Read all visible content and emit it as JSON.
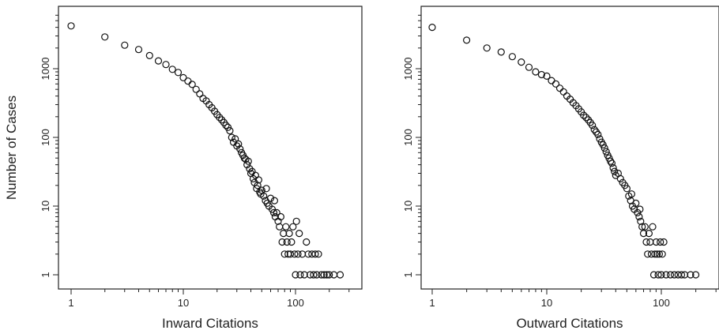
{
  "chart_data": [
    {
      "type": "scatter",
      "xlabel": "Inward Citations",
      "ylabel": "Number of Cases",
      "x_scale": "log",
      "y_scale": "log",
      "xlim": [
        0.8,
        300
      ],
      "ylim": [
        0.8,
        6000
      ],
      "x_ticks": [
        1,
        10,
        100
      ],
      "x_tick_labels": [
        "1",
        "10",
        "100"
      ],
      "y_ticks": [
        1,
        10,
        100,
        1000
      ],
      "y_tick_labels": [
        "1",
        "10",
        "100",
        "1000"
      ],
      "grid": false,
      "series": [
        {
          "points": [
            [
              1,
              4200
            ],
            [
              2,
              2900
            ],
            [
              3,
              2200
            ],
            [
              4,
              1900
            ],
            [
              5,
              1550
            ],
            [
              6,
              1300
            ],
            [
              7,
              1150
            ],
            [
              8,
              980
            ],
            [
              9,
              880
            ],
            [
              10,
              740
            ],
            [
              11,
              660
            ],
            [
              12,
              590
            ],
            [
              13,
              500
            ],
            [
              14,
              430
            ],
            [
              15,
              370
            ],
            [
              16,
              340
            ],
            [
              17,
              300
            ],
            [
              18,
              270
            ],
            [
              19,
              240
            ],
            [
              20,
              215
            ],
            [
              21,
              195
            ],
            [
              22,
              180
            ],
            [
              23,
              165
            ],
            [
              24,
              150
            ],
            [
              25,
              140
            ],
            [
              26,
              125
            ],
            [
              27,
              100
            ],
            [
              28,
              85
            ],
            [
              29,
              95
            ],
            [
              30,
              75
            ],
            [
              31,
              80
            ],
            [
              32,
              68
            ],
            [
              33,
              60
            ],
            [
              34,
              55
            ],
            [
              35,
              50
            ],
            [
              36,
              48
            ],
            [
              37,
              40
            ],
            [
              38,
              45
            ],
            [
              39,
              35
            ],
            [
              40,
              30
            ],
            [
              41,
              32
            ],
            [
              42,
              25
            ],
            [
              43,
              22
            ],
            [
              44,
              28
            ],
            [
              45,
              18
            ],
            [
              46,
              20
            ],
            [
              47,
              24
            ],
            [
              48,
              16
            ],
            [
              49,
              15
            ],
            [
              50,
              17
            ],
            [
              52,
              14
            ],
            [
              54,
              12
            ],
            [
              55,
              18
            ],
            [
              56,
              11
            ],
            [
              58,
              10
            ],
            [
              60,
              13
            ],
            [
              62,
              9
            ],
            [
              64,
              8
            ],
            [
              65,
              12
            ],
            [
              66,
              7
            ],
            [
              68,
              8
            ],
            [
              70,
              6
            ],
            [
              72,
              5
            ],
            [
              74,
              7
            ],
            [
              76,
              3
            ],
            [
              78,
              4
            ],
            [
              80,
              2
            ],
            [
              82,
              5
            ],
            [
              84,
              3
            ],
            [
              86,
              2
            ],
            [
              88,
              4
            ],
            [
              90,
              2
            ],
            [
              92,
              3
            ],
            [
              95,
              5
            ],
            [
              98,
              2
            ],
            [
              100,
              1
            ],
            [
              102,
              6
            ],
            [
              105,
              2
            ],
            [
              108,
              4
            ],
            [
              110,
              1
            ],
            [
              115,
              2
            ],
            [
              120,
              1
            ],
            [
              125,
              3
            ],
            [
              130,
              2
            ],
            [
              135,
              1
            ],
            [
              140,
              2
            ],
            [
              145,
              1
            ],
            [
              150,
              2
            ],
            [
              155,
              1
            ],
            [
              160,
              2
            ],
            [
              170,
              1
            ],
            [
              180,
              1
            ],
            [
              190,
              1
            ],
            [
              200,
              1
            ],
            [
              220,
              1
            ],
            [
              250,
              1
            ]
          ]
        }
      ]
    },
    {
      "type": "scatter",
      "xlabel": "Outward Citations",
      "ylabel": "",
      "x_scale": "log",
      "y_scale": "log",
      "xlim": [
        0.8,
        300
      ],
      "ylim": [
        0.8,
        6000
      ],
      "x_ticks": [
        1,
        10,
        100
      ],
      "x_tick_labels": [
        "1",
        "10",
        "100"
      ],
      "y_ticks": [
        1,
        10,
        100,
        1000
      ],
      "y_tick_labels": [
        "1",
        "10",
        "100",
        "1000"
      ],
      "grid": false,
      "series": [
        {
          "points": [
            [
              1,
              4000
            ],
            [
              2,
              2600
            ],
            [
              3,
              2000
            ],
            [
              4,
              1750
            ],
            [
              5,
              1500
            ],
            [
              6,
              1250
            ],
            [
              7,
              1050
            ],
            [
              8,
              900
            ],
            [
              9,
              820
            ],
            [
              10,
              780
            ],
            [
              11,
              670
            ],
            [
              12,
              600
            ],
            [
              13,
              520
            ],
            [
              14,
              460
            ],
            [
              15,
              400
            ],
            [
              16,
              360
            ],
            [
              17,
              320
            ],
            [
              18,
              290
            ],
            [
              19,
              260
            ],
            [
              20,
              235
            ],
            [
              21,
              210
            ],
            [
              22,
              195
            ],
            [
              23,
              180
            ],
            [
              24,
              165
            ],
            [
              25,
              150
            ],
            [
              26,
              130
            ],
            [
              27,
              120
            ],
            [
              28,
              110
            ],
            [
              29,
              95
            ],
            [
              30,
              85
            ],
            [
              31,
              78
            ],
            [
              32,
              70
            ],
            [
              33,
              62
            ],
            [
              34,
              55
            ],
            [
              35,
              50
            ],
            [
              36,
              45
            ],
            [
              37,
              42
            ],
            [
              38,
              36
            ],
            [
              39,
              32
            ],
            [
              40,
              28
            ],
            [
              42,
              30
            ],
            [
              44,
              25
            ],
            [
              46,
              22
            ],
            [
              48,
              20
            ],
            [
              50,
              18
            ],
            [
              52,
              14
            ],
            [
              54,
              12
            ],
            [
              55,
              15
            ],
            [
              56,
              10
            ],
            [
              58,
              9
            ],
            [
              60,
              11
            ],
            [
              62,
              8
            ],
            [
              64,
              7
            ],
            [
              65,
              9
            ],
            [
              66,
              6
            ],
            [
              68,
              5
            ],
            [
              70,
              4
            ],
            [
              72,
              5
            ],
            [
              74,
              3
            ],
            [
              76,
              2
            ],
            [
              78,
              4
            ],
            [
              80,
              3
            ],
            [
              82,
              2
            ],
            [
              84,
              5
            ],
            [
              86,
              1
            ],
            [
              88,
              2
            ],
            [
              90,
              3
            ],
            [
              92,
              2
            ],
            [
              94,
              1
            ],
            [
              96,
              2
            ],
            [
              98,
              3
            ],
            [
              100,
              1
            ],
            [
              102,
              2
            ],
            [
              105,
              3
            ],
            [
              110,
              1
            ],
            [
              120,
              1
            ],
            [
              130,
              1
            ],
            [
              140,
              1
            ],
            [
              150,
              1
            ],
            [
              160,
              1
            ],
            [
              180,
              1
            ],
            [
              200,
              1
            ]
          ]
        }
      ]
    }
  ]
}
